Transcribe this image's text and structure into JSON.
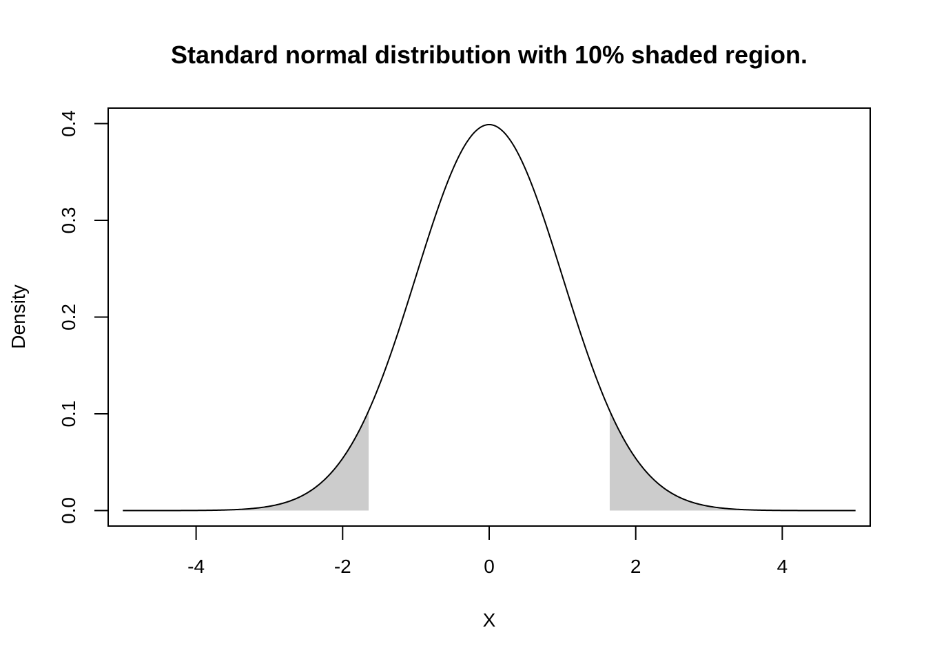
{
  "chart_data": {
    "type": "line",
    "title": "Standard normal distribution with 10% shaded region.",
    "xlabel": "X",
    "ylabel": "Density",
    "xlim": [
      -5.2,
      5.2
    ],
    "ylim": [
      -0.016,
      0.416
    ],
    "x_ticks": [
      -4,
      -2,
      0,
      2,
      4
    ],
    "x_tick_labels": [
      "-4",
      "-2",
      "0",
      "2",
      "4"
    ],
    "y_ticks": [
      0.0,
      0.1,
      0.2,
      0.3,
      0.4
    ],
    "y_tick_labels": [
      "0.0",
      "0.1",
      "0.2",
      "0.3",
      "0.4"
    ],
    "grid": false,
    "series": [
      {
        "x_range": [
          -5,
          5
        ],
        "function": "standard-normal-density",
        "mean": 0,
        "sd": 1,
        "color": "#000000"
      }
    ],
    "shaded_regions": [
      {
        "x_range": [
          -5,
          -1.645
        ],
        "color": "#cccccc"
      },
      {
        "x_range": [
          1.645,
          5
        ],
        "color": "#cccccc"
      }
    ]
  }
}
